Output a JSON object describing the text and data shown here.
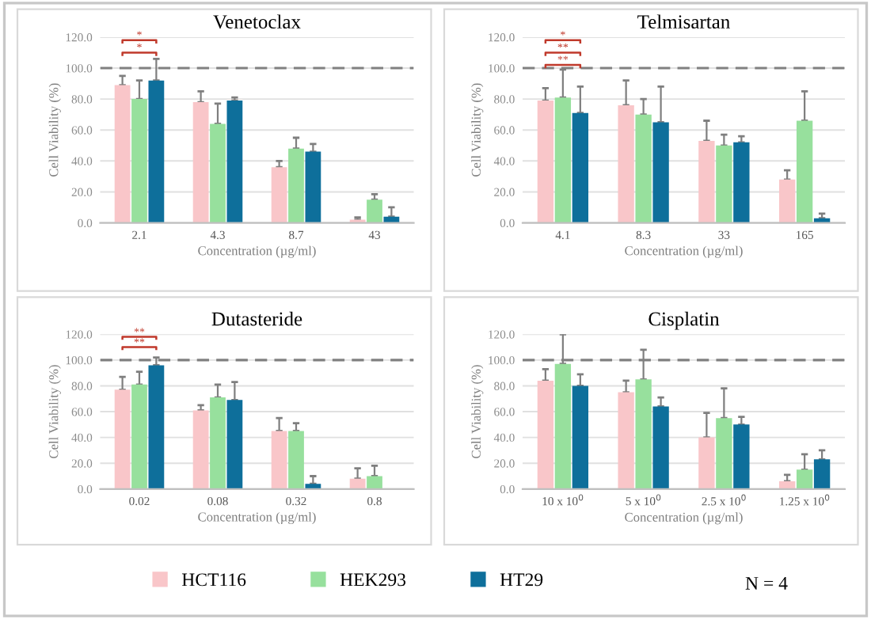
{
  "chart_data": [
    {
      "type": "bar",
      "title": "Venetoclax",
      "xlabel": "Concentration (µg/ml)",
      "ylabel": "Cell Viability (%)",
      "categories": [
        "2.1",
        "4.3",
        "8.7",
        "43"
      ],
      "series": [
        {
          "name": "HCT116",
          "color": "#f9c6c9",
          "values": [
            89,
            78,
            36,
            2
          ],
          "errors": [
            [
              89,
              95
            ],
            [
              78,
              85
            ],
            [
              36,
              40
            ],
            [
              2,
              3.5
            ]
          ]
        },
        {
          "name": "HEK293",
          "color": "#97e09d",
          "values": [
            80,
            64,
            48,
            15
          ],
          "errors": [
            [
              80,
              92
            ],
            [
              64,
              77
            ],
            [
              48,
              55
            ],
            [
              15,
              18.5
            ]
          ]
        },
        {
          "name": "HT29",
          "color": "#0e6f9b",
          "values": [
            92,
            79,
            46,
            4
          ],
          "errors": [
            [
              92,
              106
            ],
            [
              79,
              81
            ],
            [
              46,
              51
            ],
            [
              4,
              10
            ]
          ]
        }
      ],
      "ylim": [
        0,
        120
      ],
      "yticks": [
        {
          "value": 0,
          "label": "0.0"
        },
        {
          "value": 20,
          "label": "20.0"
        },
        {
          "value": 40,
          "label": "40.0"
        },
        {
          "value": 60,
          "label": "60.0"
        },
        {
          "value": 80,
          "label": "80.0"
        },
        {
          "value": 100,
          "label": "100.0"
        },
        {
          "value": 120,
          "label": "120.0"
        }
      ],
      "ref_lines": [
        {
          "axis": "y",
          "value": 100,
          "color": "#808080",
          "line_style": "dashed"
        }
      ],
      "annotations": [
        "*",
        "*",
        "N = 4"
      ],
      "grid": "y",
      "legend": "bottom"
    },
    {
      "type": "bar",
      "title": "Telmisartan",
      "xlabel": "Concentration (µg/ml)",
      "ylabel": "Cell Viability (%)",
      "categories": [
        "4.1",
        "8.3",
        "33",
        "165"
      ],
      "series": [
        {
          "color": "#f9c6c9",
          "values": [
            79,
            76,
            53,
            28
          ],
          "errors": [
            [
              79,
              87
            ],
            [
              76,
              92
            ],
            [
              53,
              66
            ],
            [
              28,
              34
            ]
          ]
        },
        {
          "color": "#97e09d",
          "values": [
            81,
            70,
            50,
            66
          ],
          "errors": [
            [
              81,
              99
            ],
            [
              70,
              80
            ],
            [
              50,
              57
            ],
            [
              66,
              85
            ]
          ]
        },
        {
          "color": "#0e6f9b",
          "values": [
            71,
            65,
            52,
            3
          ],
          "errors": [
            [
              71,
              88
            ],
            [
              65,
              88
            ],
            [
              52,
              56
            ],
            [
              3,
              6
            ]
          ]
        }
      ],
      "ylim": [
        0,
        120
      ],
      "yticks": [
        {
          "value": 0,
          "label": "0.0"
        },
        {
          "value": 20,
          "label": "20.0"
        },
        {
          "value": 40,
          "label": "40.0"
        },
        {
          "value": 60,
          "label": "60.0"
        },
        {
          "value": 80,
          "label": "80.0"
        },
        {
          "value": 100,
          "label": "100.0"
        },
        {
          "value": 120,
          "label": "120.0"
        }
      ],
      "ref_lines": [
        {
          "axis": "y",
          "value": 100,
          "color": "#808080",
          "line_style": "dashed"
        }
      ],
      "annotations": [
        "*",
        "**",
        "**"
      ],
      "grid": "y"
    },
    {
      "type": "bar",
      "title": "Dutasteride",
      "xlabel": "Concentration (µg/ml)",
      "ylabel": "Cell Viability (%)",
      "categories": [
        "0.02",
        "0.08",
        "0.32",
        "0.8"
      ],
      "series": [
        {
          "color": "#f9c6c9",
          "values": [
            77,
            61,
            45,
            8
          ],
          "errors": [
            [
              77,
              87
            ],
            [
              61,
              65
            ],
            [
              45,
              55
            ],
            [
              8,
              16
            ]
          ]
        },
        {
          "color": "#97e09d",
          "values": [
            81,
            71,
            45,
            10
          ],
          "errors": [
            [
              81,
              91
            ],
            [
              71,
              81
            ],
            [
              45,
              51
            ],
            [
              10,
              18
            ]
          ]
        },
        {
          "color": "#0e6f9b",
          "values": [
            96,
            69,
            4,
            0
          ],
          "errors": [
            [
              96,
              102
            ],
            [
              69,
              83
            ],
            [
              4,
              10
            ],
            null
          ]
        }
      ],
      "ylim": [
        0,
        120
      ],
      "yticks": [
        {
          "value": 0,
          "label": "0.0"
        },
        {
          "value": 20,
          "label": "20.0"
        },
        {
          "value": 40,
          "label": "40.0"
        },
        {
          "value": 60,
          "label": "60.0"
        },
        {
          "value": 80,
          "label": "80.0"
        },
        {
          "value": 100,
          "label": "100.0"
        },
        {
          "value": 120,
          "label": "120.0"
        }
      ],
      "ref_lines": [
        {
          "axis": "y",
          "value": 100,
          "color": "#808080",
          "line_style": "dashed"
        }
      ],
      "annotations": [
        "**",
        "**"
      ],
      "grid": "y"
    },
    {
      "type": "bar",
      "title": "Cisplatin",
      "xlabel": "Concentration (µg/ml)",
      "ylabel": "Cell Viability (%)",
      "categories": [
        "10 x 10$^{0}$",
        "5 x 10$^{0}$",
        "2.5 x 10$^{0}$",
        "1.25 x 10$^{0}$"
      ],
      "series": [
        {
          "color": "#f9c6c9",
          "values": [
            84,
            75,
            40,
            6
          ],
          "errors": [
            [
              84,
              93
            ],
            [
              75,
              84
            ],
            [
              40,
              59
            ],
            [
              6,
              11
            ]
          ]
        },
        {
          "color": "#97e09d",
          "values": [
            97,
            85,
            55,
            15
          ],
          "errors": [
            [
              97,
              120
            ],
            [
              85,
              108
            ],
            [
              55,
              78
            ],
            [
              15,
              27
            ]
          ]
        },
        {
          "color": "#0e6f9b",
          "values": [
            80,
            64,
            50,
            23
          ],
          "errors": [
            [
              80,
              89
            ],
            [
              64,
              71
            ],
            [
              50,
              56
            ],
            [
              23,
              30
            ]
          ]
        }
      ],
      "ylim": [
        0,
        120
      ],
      "yticks": [
        {
          "value": 0,
          "label": "0.0"
        },
        {
          "value": 20,
          "label": "20.0"
        },
        {
          "value": 40,
          "label": "40.0"
        },
        {
          "value": 60,
          "label": "60.0"
        },
        {
          "value": 80,
          "label": "80.0"
        },
        {
          "value": 100,
          "label": "100.0"
        },
        {
          "value": 120,
          "label": "120.0"
        }
      ],
      "ref_lines": [
        {
          "axis": "y",
          "value": 100,
          "color": "#808080",
          "line_style": "dashed"
        }
      ],
      "grid": "y"
    }
  ]
}
